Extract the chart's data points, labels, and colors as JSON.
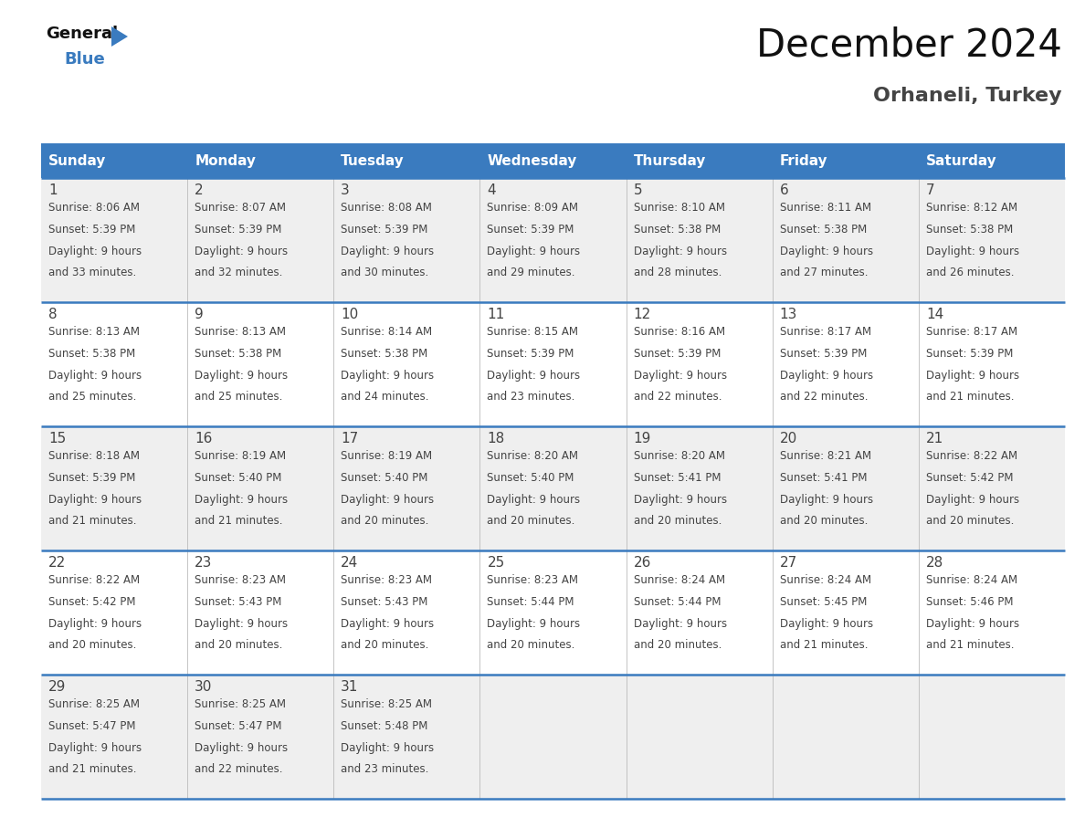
{
  "title": "December 2024",
  "subtitle": "Orhaneli, Turkey",
  "header_color": "#3a7bbf",
  "header_text_color": "#ffffff",
  "day_names": [
    "Sunday",
    "Monday",
    "Tuesday",
    "Wednesday",
    "Thursday",
    "Friday",
    "Saturday"
  ],
  "days": [
    {
      "day": 1,
      "col": 0,
      "row": 0,
      "sunrise": "8:06 AM",
      "sunset": "5:39 PM",
      "daylight_hours": 9,
      "daylight_minutes": 33
    },
    {
      "day": 2,
      "col": 1,
      "row": 0,
      "sunrise": "8:07 AM",
      "sunset": "5:39 PM",
      "daylight_hours": 9,
      "daylight_minutes": 32
    },
    {
      "day": 3,
      "col": 2,
      "row": 0,
      "sunrise": "8:08 AM",
      "sunset": "5:39 PM",
      "daylight_hours": 9,
      "daylight_minutes": 30
    },
    {
      "day": 4,
      "col": 3,
      "row": 0,
      "sunrise": "8:09 AM",
      "sunset": "5:39 PM",
      "daylight_hours": 9,
      "daylight_minutes": 29
    },
    {
      "day": 5,
      "col": 4,
      "row": 0,
      "sunrise": "8:10 AM",
      "sunset": "5:38 PM",
      "daylight_hours": 9,
      "daylight_minutes": 28
    },
    {
      "day": 6,
      "col": 5,
      "row": 0,
      "sunrise": "8:11 AM",
      "sunset": "5:38 PM",
      "daylight_hours": 9,
      "daylight_minutes": 27
    },
    {
      "day": 7,
      "col": 6,
      "row": 0,
      "sunrise": "8:12 AM",
      "sunset": "5:38 PM",
      "daylight_hours": 9,
      "daylight_minutes": 26
    },
    {
      "day": 8,
      "col": 0,
      "row": 1,
      "sunrise": "8:13 AM",
      "sunset": "5:38 PM",
      "daylight_hours": 9,
      "daylight_minutes": 25
    },
    {
      "day": 9,
      "col": 1,
      "row": 1,
      "sunrise": "8:13 AM",
      "sunset": "5:38 PM",
      "daylight_hours": 9,
      "daylight_minutes": 25
    },
    {
      "day": 10,
      "col": 2,
      "row": 1,
      "sunrise": "8:14 AM",
      "sunset": "5:38 PM",
      "daylight_hours": 9,
      "daylight_minutes": 24
    },
    {
      "day": 11,
      "col": 3,
      "row": 1,
      "sunrise": "8:15 AM",
      "sunset": "5:39 PM",
      "daylight_hours": 9,
      "daylight_minutes": 23
    },
    {
      "day": 12,
      "col": 4,
      "row": 1,
      "sunrise": "8:16 AM",
      "sunset": "5:39 PM",
      "daylight_hours": 9,
      "daylight_minutes": 22
    },
    {
      "day": 13,
      "col": 5,
      "row": 1,
      "sunrise": "8:17 AM",
      "sunset": "5:39 PM",
      "daylight_hours": 9,
      "daylight_minutes": 22
    },
    {
      "day": 14,
      "col": 6,
      "row": 1,
      "sunrise": "8:17 AM",
      "sunset": "5:39 PM",
      "daylight_hours": 9,
      "daylight_minutes": 21
    },
    {
      "day": 15,
      "col": 0,
      "row": 2,
      "sunrise": "8:18 AM",
      "sunset": "5:39 PM",
      "daylight_hours": 9,
      "daylight_minutes": 21
    },
    {
      "day": 16,
      "col": 1,
      "row": 2,
      "sunrise": "8:19 AM",
      "sunset": "5:40 PM",
      "daylight_hours": 9,
      "daylight_minutes": 21
    },
    {
      "day": 17,
      "col": 2,
      "row": 2,
      "sunrise": "8:19 AM",
      "sunset": "5:40 PM",
      "daylight_hours": 9,
      "daylight_minutes": 20
    },
    {
      "day": 18,
      "col": 3,
      "row": 2,
      "sunrise": "8:20 AM",
      "sunset": "5:40 PM",
      "daylight_hours": 9,
      "daylight_minutes": 20
    },
    {
      "day": 19,
      "col": 4,
      "row": 2,
      "sunrise": "8:20 AM",
      "sunset": "5:41 PM",
      "daylight_hours": 9,
      "daylight_minutes": 20
    },
    {
      "day": 20,
      "col": 5,
      "row": 2,
      "sunrise": "8:21 AM",
      "sunset": "5:41 PM",
      "daylight_hours": 9,
      "daylight_minutes": 20
    },
    {
      "day": 21,
      "col": 6,
      "row": 2,
      "sunrise": "8:22 AM",
      "sunset": "5:42 PM",
      "daylight_hours": 9,
      "daylight_minutes": 20
    },
    {
      "day": 22,
      "col": 0,
      "row": 3,
      "sunrise": "8:22 AM",
      "sunset": "5:42 PM",
      "daylight_hours": 9,
      "daylight_minutes": 20
    },
    {
      "day": 23,
      "col": 1,
      "row": 3,
      "sunrise": "8:23 AM",
      "sunset": "5:43 PM",
      "daylight_hours": 9,
      "daylight_minutes": 20
    },
    {
      "day": 24,
      "col": 2,
      "row": 3,
      "sunrise": "8:23 AM",
      "sunset": "5:43 PM",
      "daylight_hours": 9,
      "daylight_minutes": 20
    },
    {
      "day": 25,
      "col": 3,
      "row": 3,
      "sunrise": "8:23 AM",
      "sunset": "5:44 PM",
      "daylight_hours": 9,
      "daylight_minutes": 20
    },
    {
      "day": 26,
      "col": 4,
      "row": 3,
      "sunrise": "8:24 AM",
      "sunset": "5:44 PM",
      "daylight_hours": 9,
      "daylight_minutes": 20
    },
    {
      "day": 27,
      "col": 5,
      "row": 3,
      "sunrise": "8:24 AM",
      "sunset": "5:45 PM",
      "daylight_hours": 9,
      "daylight_minutes": 21
    },
    {
      "day": 28,
      "col": 6,
      "row": 3,
      "sunrise": "8:24 AM",
      "sunset": "5:46 PM",
      "daylight_hours": 9,
      "daylight_minutes": 21
    },
    {
      "day": 29,
      "col": 0,
      "row": 4,
      "sunrise": "8:25 AM",
      "sunset": "5:47 PM",
      "daylight_hours": 9,
      "daylight_minutes": 21
    },
    {
      "day": 30,
      "col": 1,
      "row": 4,
      "sunrise": "8:25 AM",
      "sunset": "5:47 PM",
      "daylight_hours": 9,
      "daylight_minutes": 22
    },
    {
      "day": 31,
      "col": 2,
      "row": 4,
      "sunrise": "8:25 AM",
      "sunset": "5:48 PM",
      "daylight_hours": 9,
      "daylight_minutes": 23
    }
  ],
  "n_rows": 5,
  "n_cols": 7,
  "row_bg_colors": [
    "#efefef",
    "#ffffff",
    "#efefef",
    "#ffffff",
    "#efefef"
  ],
  "border_color": "#3a7bbf",
  "text_color": "#444444",
  "title_fontsize": 30,
  "subtitle_fontsize": 16,
  "header_fontsize": 11,
  "daynum_fontsize": 11,
  "cell_fontsize": 8.5,
  "logo_general_color": "#111111",
  "logo_blue_color": "#3a7bbf"
}
